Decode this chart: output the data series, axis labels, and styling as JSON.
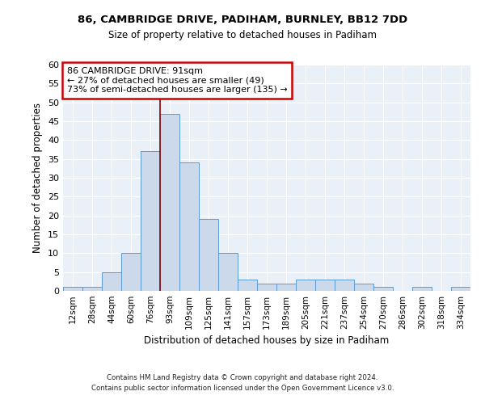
{
  "title1": "86, CAMBRIDGE DRIVE, PADIHAM, BURNLEY, BB12 7DD",
  "title2": "Size of property relative to detached houses in Padiham",
  "xlabel": "Distribution of detached houses by size in Padiham",
  "ylabel": "Number of detached properties",
  "bar_labels": [
    "12sqm",
    "28sqm",
    "44sqm",
    "60sqm",
    "76sqm",
    "93sqm",
    "109sqm",
    "125sqm",
    "141sqm",
    "157sqm",
    "173sqm",
    "189sqm",
    "205sqm",
    "221sqm",
    "237sqm",
    "254sqm",
    "270sqm",
    "286sqm",
    "302sqm",
    "318sqm",
    "334sqm"
  ],
  "bar_values": [
    1,
    1,
    5,
    10,
    37,
    47,
    34,
    19,
    10,
    3,
    2,
    2,
    3,
    3,
    3,
    2,
    1,
    0,
    1,
    0,
    1
  ],
  "bar_color": "#ccd9ea",
  "bar_edge_color": "#5b9bd5",
  "ylim": [
    0,
    60
  ],
  "yticks": [
    0,
    5,
    10,
    15,
    20,
    25,
    30,
    35,
    40,
    45,
    50,
    55,
    60
  ],
  "annotation_text": "86 CAMBRIDGE DRIVE: 91sqm\n← 27% of detached houses are smaller (49)\n73% of semi-detached houses are larger (135) →",
  "annotation_box_color": "#ffffff",
  "annotation_box_edge_color": "#cc0000",
  "vline_color": "#8b0000",
  "footer1": "Contains HM Land Registry data © Crown copyright and database right 2024.",
  "footer2": "Contains public sector information licensed under the Open Government Licence v3.0.",
  "bg_color": "#eaf0f8",
  "grid_color": "#ffffff"
}
